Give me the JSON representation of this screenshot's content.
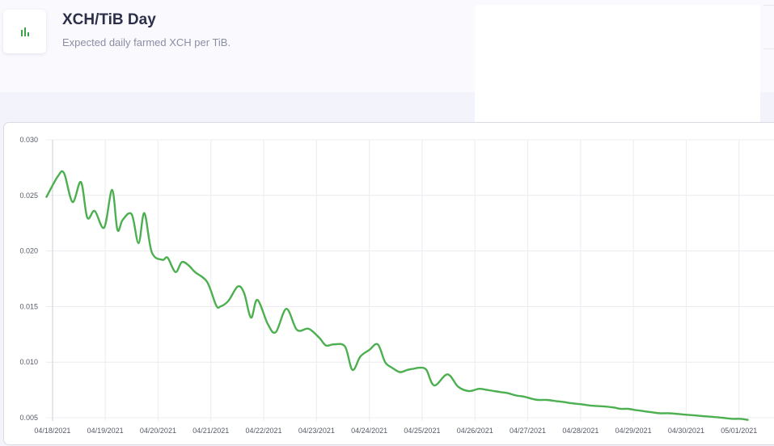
{
  "header": {
    "title": "XCH/TiB Day",
    "subtitle": "Expected daily farmed XCH per TiB.",
    "icon": "bar-chart-icon",
    "icon_color": "#3fa24a"
  },
  "chart_data": {
    "type": "line",
    "title": "",
    "xlabel": "",
    "ylabel": "",
    "line_color": "#4caf50",
    "grid": true,
    "legend": "none",
    "ylim": [
      0.005,
      0.03
    ],
    "yticks": [
      "0.030",
      "0.025",
      "0.020",
      "0.015",
      "0.010",
      "0.005"
    ],
    "xlim": [
      0,
      13.3
    ],
    "xticks": [
      "04/18/2021",
      "04/19/2021",
      "04/20/2021",
      "04/21/2021",
      "04/22/2021",
      "04/23/2021",
      "04/24/2021",
      "04/25/2021",
      "04/26/2021",
      "04/27/2021",
      "04/28/2021",
      "04/29/2021",
      "04/30/2021",
      "05/01/2021"
    ],
    "series": [
      {
        "x": [
          0,
          0.22,
          0.34,
          0.5,
          0.66,
          0.78,
          0.92,
          1.1,
          1.25,
          1.35,
          1.45,
          1.62,
          1.75,
          1.86,
          2.0,
          2.2,
          2.3,
          2.45,
          2.57,
          2.7,
          2.82,
          3.05,
          3.22,
          3.3,
          3.45,
          3.63,
          3.75,
          3.88,
          4.0,
          4.2,
          4.35,
          4.55,
          4.75,
          4.97,
          5.17,
          5.3,
          5.45,
          5.66,
          5.8,
          5.95,
          6.12,
          6.28,
          6.42,
          6.55,
          6.7,
          6.84,
          6.95,
          7.08,
          7.2,
          7.35,
          7.6,
          7.8,
          8.0,
          8.2,
          8.35,
          8.48,
          8.62,
          8.75,
          8.9,
          9.05,
          9.2,
          9.32,
          9.48,
          9.65,
          9.82,
          9.95,
          10.15,
          10.3,
          10.6,
          10.77,
          10.88,
          11.02,
          11.15,
          11.3,
          11.45,
          11.62,
          11.8,
          12.05,
          12.3,
          12.55,
          12.8,
          13.0,
          13.15,
          13.3
        ],
        "y": [
          0.0248,
          0.0267,
          0.027,
          0.0244,
          0.0262,
          0.023,
          0.0236,
          0.0221,
          0.0255,
          0.0219,
          0.0228,
          0.0233,
          0.0207,
          0.0234,
          0.0199,
          0.0192,
          0.0194,
          0.0181,
          0.019,
          0.0187,
          0.0181,
          0.0172,
          0.0151,
          0.015,
          0.0155,
          0.0168,
          0.0162,
          0.014,
          0.0156,
          0.0134,
          0.0127,
          0.0148,
          0.0129,
          0.013,
          0.0122,
          0.0115,
          0.0116,
          0.0114,
          0.0093,
          0.0105,
          0.0111,
          0.0116,
          0.01,
          0.0095,
          0.0091,
          0.0093,
          0.0094,
          0.0095,
          0.0093,
          0.0079,
          0.0089,
          0.0078,
          0.0074,
          0.0076,
          0.0075,
          0.0074,
          0.0073,
          0.0072,
          0.007,
          0.0069,
          0.0067,
          0.0066,
          0.0066,
          0.0065,
          0.0064,
          0.0063,
          0.0062,
          0.0061,
          0.006,
          0.0059,
          0.0058,
          0.0058,
          0.0057,
          0.0056,
          0.0055,
          0.0054,
          0.0054,
          0.0053,
          0.0052,
          0.0051,
          0.005,
          0.0049,
          0.0049,
          0.0048
        ]
      }
    ]
  }
}
